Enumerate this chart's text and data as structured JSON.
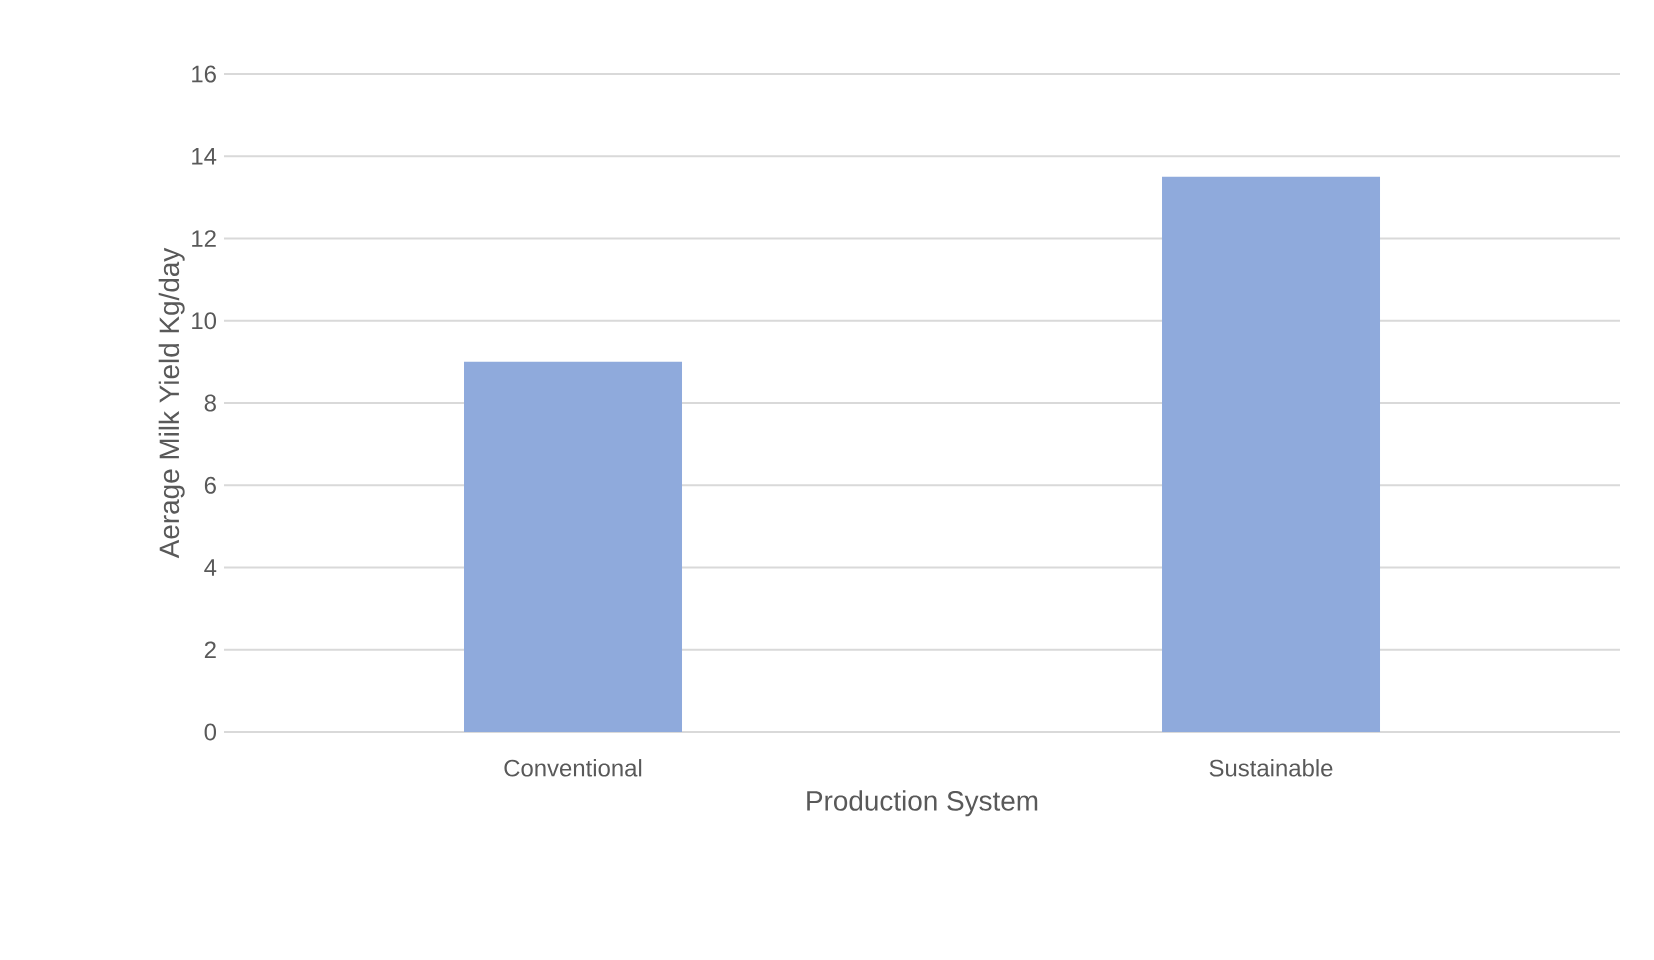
{
  "chart_data": {
    "type": "bar",
    "xlabel": "Production System",
    "ylabel": "Aerage Milk Yield Kg/day",
    "categories": [
      "Conventional",
      "Sustainable"
    ],
    "values": [
      9.0,
      13.5
    ],
    "color": "#8faadc",
    "ylim": [
      0,
      16
    ],
    "yticks": [
      0,
      2,
      4,
      6,
      8,
      10,
      12,
      14,
      16
    ],
    "grid": "y"
  }
}
